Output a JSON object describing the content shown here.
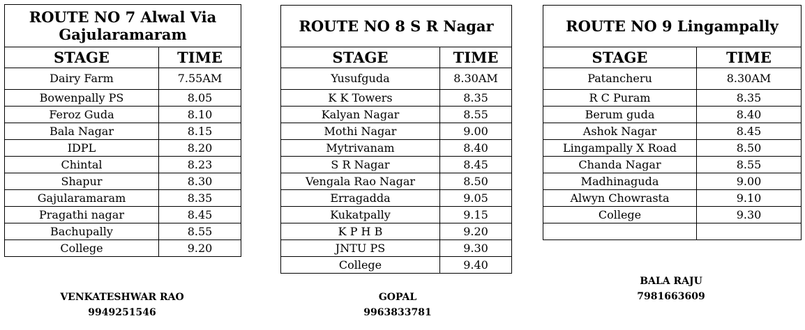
{
  "headers": {
    "stage": "STAGE",
    "time": "TIME"
  },
  "routes": [
    {
      "title": "ROUTE NO 7 Alwal   Via Gajularamaram",
      "rows": [
        {
          "stage": "Dairy Farm",
          "time": "7.55AM"
        },
        {
          "stage": "Bowenpally PS",
          "time": "8.05"
        },
        {
          "stage": "Feroz Guda",
          "time": "8.10"
        },
        {
          "stage": "Bala Nagar",
          "time": "8.15"
        },
        {
          "stage": "IDPL",
          "time": "8.20"
        },
        {
          "stage": "Chintal",
          "time": "8.23"
        },
        {
          "stage": "Shapur",
          "time": "8.30"
        },
        {
          "stage": "Gajularamaram",
          "time": "8.35"
        },
        {
          "stage": "Pragathi nagar",
          "time": "8.45"
        },
        {
          "stage": "Bachupally",
          "time": "8.55"
        },
        {
          "stage": "College",
          "time": "9.20"
        }
      ]
    },
    {
      "title": "ROUTE NO 8 S R Nagar",
      "rows": [
        {
          "stage": "Yusufguda",
          "time": "8.30AM"
        },
        {
          "stage": "K K Towers",
          "time": "8.35"
        },
        {
          "stage": "Kalyan Nagar",
          "time": "8.55"
        },
        {
          "stage": "Mothi Nagar",
          "time": "9.00"
        },
        {
          "stage": "Mytrivanam",
          "time": "8.40"
        },
        {
          "stage": "S R Nagar",
          "time": "8.45"
        },
        {
          "stage": "Vengala Rao Nagar",
          "time": "8.50"
        },
        {
          "stage": "Erragadda",
          "time": "9.05"
        },
        {
          "stage": "Kukatpally",
          "time": "9.15"
        },
        {
          "stage": "K P H B",
          "time": "9.20"
        },
        {
          "stage": "JNTU PS",
          "time": "9.30"
        },
        {
          "stage": "College",
          "time": "9.40"
        }
      ]
    },
    {
      "title": "ROUTE NO 9 Lingampally",
      "rows": [
        {
          "stage": "Patancheru",
          "time": "8.30AM"
        },
        {
          "stage": "R C Puram",
          "time": "8.35"
        },
        {
          "stage": "Berum guda",
          "time": "8.40"
        },
        {
          "stage": "Ashok Nagar",
          "time": "8.45"
        },
        {
          "stage": "Lingampally X Road",
          "time": "8.50"
        },
        {
          "stage": "Chanda Nagar",
          "time": "8.55"
        },
        {
          "stage": "Madhinaguda",
          "time": "9.00"
        },
        {
          "stage": "Alwyn Chowrasta",
          "time": "9.10"
        },
        {
          "stage": "College",
          "time": "9.30"
        },
        {
          "stage": "",
          "time": ""
        }
      ]
    }
  ],
  "contacts": [
    {
      "name": "VENKATESHWAR RAO",
      "phone": "9949251546"
    },
    {
      "name": "GOPAL",
      "phone": "9963833781"
    },
    {
      "name": "BALA RAJU",
      "phone": "7981663609"
    }
  ]
}
